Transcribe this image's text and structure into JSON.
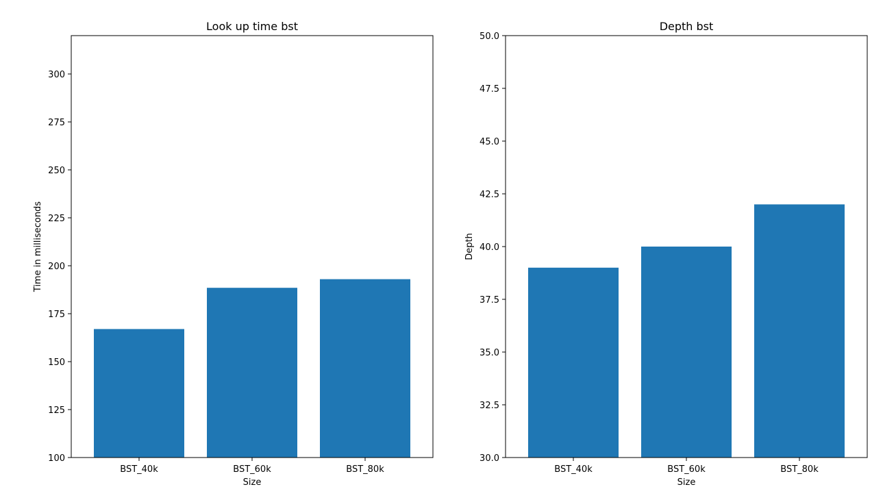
{
  "chart_data": [
    {
      "type": "bar",
      "title": "Look up time bst",
      "xlabel": "Size",
      "ylabel": "Time in milliseconds",
      "categories": [
        "BST_40k",
        "BST_60k",
        "BST_80k"
      ],
      "values": [
        167,
        188.5,
        193
      ],
      "ylim": [
        100,
        320
      ],
      "yticks": [
        100,
        125,
        150,
        175,
        200,
        225,
        250,
        275,
        300
      ],
      "ytick_labels": [
        "100",
        "125",
        "150",
        "175",
        "200",
        "225",
        "250",
        "275",
        "300"
      ],
      "grid": false,
      "bar_color": "#1f77b4"
    },
    {
      "type": "bar",
      "title": "Depth bst",
      "xlabel": "Size",
      "ylabel": "Depth",
      "categories": [
        "BST_40k",
        "BST_60k",
        "BST_80k"
      ],
      "values": [
        39,
        40,
        42
      ],
      "ylim": [
        30,
        50
      ],
      "yticks": [
        30,
        32.5,
        35,
        37.5,
        40,
        42.5,
        45,
        47.5,
        50
      ],
      "ytick_labels": [
        "30.0",
        "32.5",
        "35.0",
        "37.5",
        "40.0",
        "42.5",
        "45.0",
        "47.5",
        "50.0"
      ],
      "grid": false,
      "bar_color": "#1f77b4"
    }
  ]
}
